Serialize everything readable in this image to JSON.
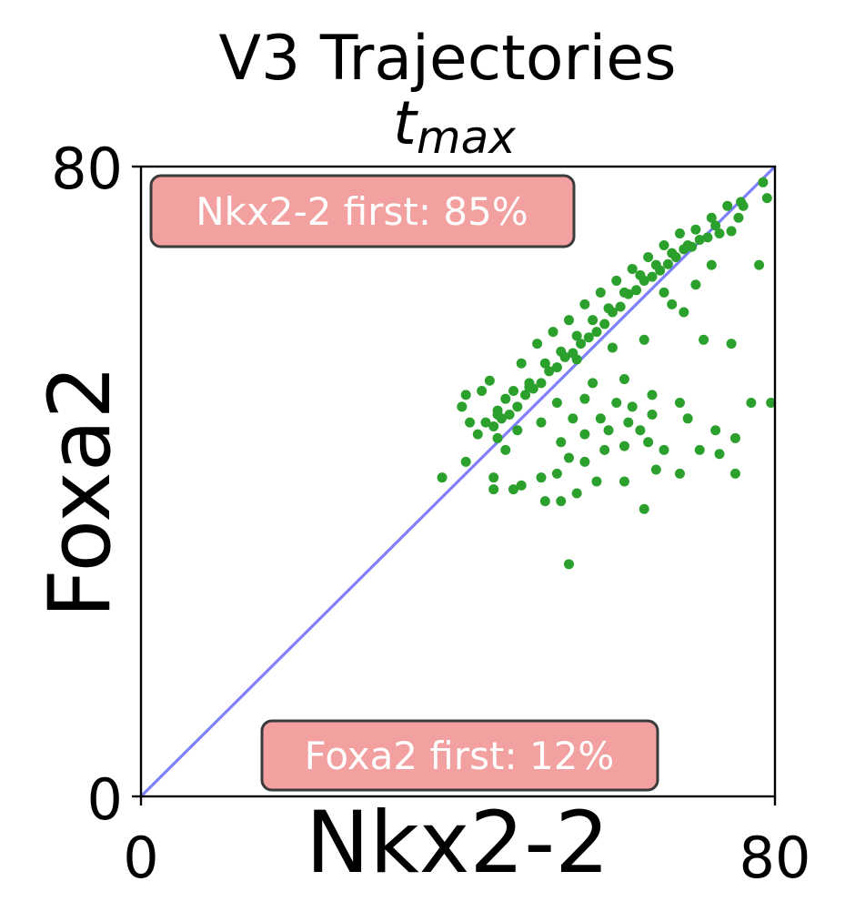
{
  "chart_data": {
    "type": "scatter",
    "title": "V3 Trajectories",
    "subtitle_math": {
      "base": "t",
      "subscript": "max"
    },
    "xlabel": "Nkx2-2",
    "ylabel": "Foxa2",
    "xlim": [
      0,
      80
    ],
    "ylim": [
      0,
      80
    ],
    "xticks": [
      "0",
      "80"
    ],
    "yticks": [
      "0",
      "80"
    ],
    "grid": false,
    "reference_line": {
      "from": [
        0,
        0
      ],
      "to": [
        80,
        80
      ],
      "color": "#8080ff"
    },
    "annotations": {
      "top_left": "Nkx2-2 first: 85%",
      "bottom": "Foxa2 first: 12%"
    },
    "colors": {
      "points": "#2ca02c",
      "box_fill": "#f2a0a0",
      "box_edge": "#3a3a3a"
    },
    "series": [
      {
        "points": [
          [
            78.5,
            78.0
          ],
          [
            75.7,
            75.5
          ],
          [
            75.4,
            73.5
          ],
          [
            74.5,
            71.8
          ],
          [
            73.0,
            71.5
          ],
          [
            72.5,
            72.5
          ],
          [
            71.5,
            71.0
          ],
          [
            70.5,
            70.7
          ],
          [
            69.5,
            69.8
          ],
          [
            68.5,
            69.5
          ],
          [
            67.5,
            68.5
          ],
          [
            66.5,
            67.6
          ],
          [
            65.5,
            66.8
          ],
          [
            64.5,
            66.0
          ],
          [
            63.5,
            65.5
          ],
          [
            62.5,
            64.3
          ],
          [
            61.5,
            63.8
          ],
          [
            60.5,
            62.2
          ],
          [
            59.5,
            61.5
          ],
          [
            58.5,
            60.0
          ],
          [
            57.5,
            59.0
          ],
          [
            56.5,
            58.3
          ],
          [
            55.5,
            57.5
          ],
          [
            54.5,
            56.3
          ],
          [
            53.5,
            55.8
          ],
          [
            52.5,
            54.5
          ],
          [
            51.5,
            54.0
          ],
          [
            50.5,
            52.5
          ],
          [
            49.5,
            51.8
          ],
          [
            48.5,
            51.0
          ],
          [
            47.5,
            49.5
          ],
          [
            46.5,
            48.5
          ],
          [
            45.5,
            48.0
          ],
          [
            44.5,
            47.0
          ],
          [
            69.0,
            70.0
          ],
          [
            67.0,
            69.0
          ],
          [
            65.0,
            67.5
          ],
          [
            63.0,
            66.2
          ],
          [
            61.0,
            64.0
          ],
          [
            59.0,
            62.0
          ],
          [
            57.0,
            60.5
          ],
          [
            55.0,
            58.5
          ],
          [
            53.0,
            56.5
          ],
          [
            51.0,
            55.0
          ],
          [
            49.0,
            52.5
          ],
          [
            47.0,
            51.5
          ],
          [
            45.0,
            49.0
          ],
          [
            43.5,
            47.5
          ],
          [
            42.5,
            46.0
          ],
          [
            41.5,
            47.5
          ],
          [
            40.5,
            49.5
          ],
          [
            41.0,
            51.0
          ],
          [
            43.0,
            51.5
          ],
          [
            44.0,
            52.8
          ],
          [
            48.0,
            55.0
          ],
          [
            50.0,
            57.5
          ],
          [
            52.0,
            59.0
          ],
          [
            54.0,
            60.5
          ],
          [
            56.0,
            62.5
          ],
          [
            58.0,
            64.0
          ],
          [
            60.0,
            65.5
          ],
          [
            62.0,
            67.0
          ],
          [
            64.0,
            68.5
          ],
          [
            66.0,
            70.0
          ],
          [
            68.0,
            71.5
          ],
          [
            70.0,
            72.0
          ],
          [
            72.0,
            73.5
          ],
          [
            74.0,
            75.0
          ],
          [
            76.0,
            75.0
          ],
          [
            79.0,
            76.0
          ],
          [
            66.0,
            64.0
          ],
          [
            70.0,
            65.0
          ],
          [
            67.0,
            62.5
          ],
          [
            72.0,
            67.5
          ],
          [
            68.5,
            61.5
          ],
          [
            78.0,
            67.5
          ],
          [
            71.0,
            58.0
          ],
          [
            74.5,
            57.5
          ],
          [
            63.5,
            58.0
          ],
          [
            59.5,
            57.0
          ],
          [
            55.0,
            55.5
          ],
          [
            61.0,
            53.0
          ],
          [
            57.0,
            52.5
          ],
          [
            52.5,
            50.0
          ],
          [
            56.0,
            50.5
          ],
          [
            60.0,
            50.0
          ],
          [
            62.0,
            49.5
          ],
          [
            64.5,
            51.0
          ],
          [
            58.0,
            48.0
          ],
          [
            54.5,
            48.0
          ],
          [
            50.5,
            47.5
          ],
          [
            47.5,
            46.5
          ],
          [
            45.0,
            45.5
          ],
          [
            53.0,
            45.0
          ],
          [
            56.0,
            46.0
          ],
          [
            59.0,
            46.5
          ],
          [
            61.5,
            47.5
          ],
          [
            63.0,
            46.5
          ],
          [
            64.5,
            48.5
          ],
          [
            72.5,
            46.5
          ],
          [
            75.0,
            45.5
          ],
          [
            79.5,
            50.0
          ],
          [
            77.0,
            50.0
          ],
          [
            68.0,
            50.0
          ],
          [
            69.0,
            48.0
          ],
          [
            66.0,
            44.0
          ],
          [
            64.0,
            45.0
          ],
          [
            61.0,
            44.5
          ],
          [
            58.5,
            44.0
          ],
          [
            56.0,
            42.5
          ],
          [
            54.0,
            43.0
          ],
          [
            52.5,
            41.0
          ],
          [
            50.5,
            40.5
          ],
          [
            48.0,
            39.5
          ],
          [
            46.0,
            44.0
          ],
          [
            70.5,
            44.0
          ],
          [
            73.0,
            43.5
          ],
          [
            75.0,
            41.0
          ],
          [
            68.0,
            41.0
          ],
          [
            65.0,
            41.5
          ],
          [
            61.0,
            40.0
          ],
          [
            57.5,
            40.0
          ],
          [
            55.0,
            38.5
          ],
          [
            53.0,
            37.5
          ],
          [
            51.0,
            37.5
          ],
          [
            47.0,
            39.0
          ],
          [
            38.0,
            40.5
          ],
          [
            41.0,
            42.5
          ],
          [
            45.0,
            48.5
          ],
          [
            63.5,
            36.5
          ],
          [
            54.0,
            29.5
          ],
          [
            44.5,
            40.5
          ],
          [
            44.5,
            39.0
          ],
          [
            49.0,
            52.0
          ],
          [
            46.0,
            50.5
          ]
        ]
      }
    ]
  }
}
